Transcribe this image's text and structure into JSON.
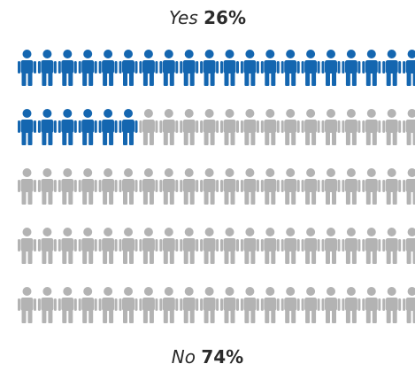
{
  "chart_data": {
    "type": "pictogram",
    "total_icons": 100,
    "rows": 5,
    "columns": 20,
    "categories": [
      "Yes",
      "No"
    ],
    "values": [
      26,
      74
    ],
    "value_labels": [
      "26%",
      "74%"
    ],
    "colors": {
      "Yes": "#1466b0",
      "No": "#b3b3b3"
    },
    "icon": "person-icon",
    "fill_order": "row-major"
  }
}
